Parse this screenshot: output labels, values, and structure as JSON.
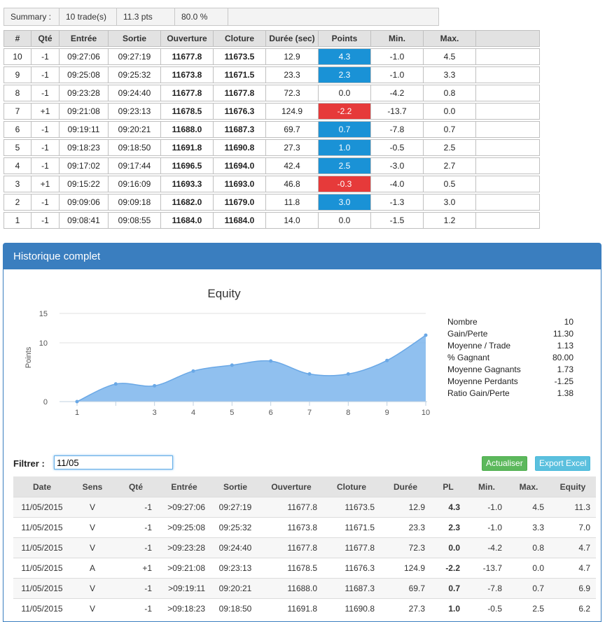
{
  "summary": {
    "label": "Summary :",
    "trades": "10 trade(s)",
    "points": "11.3 pts",
    "win_pct": "80.0 %"
  },
  "trades_table": {
    "headers": [
      "#",
      "Qté",
      "Entrée",
      "Sortie",
      "Ouverture",
      "Cloture",
      "Durée (sec)",
      "Points",
      "Min.",
      "Max.",
      ""
    ],
    "rows": [
      {
        "n": "10",
        "qte": "-1",
        "entree": "09:27:06",
        "sortie": "09:27:19",
        "ouv": "11677.8",
        "clot": "11673.5",
        "duree": "12.9",
        "points": "4.3",
        "min": "-1.0",
        "max": "4.5"
      },
      {
        "n": "9",
        "qte": "-1",
        "entree": "09:25:08",
        "sortie": "09:25:32",
        "ouv": "11673.8",
        "clot": "11671.5",
        "duree": "23.3",
        "points": "2.3",
        "min": "-1.0",
        "max": "3.3"
      },
      {
        "n": "8",
        "qte": "-1",
        "entree": "09:23:28",
        "sortie": "09:24:40",
        "ouv": "11677.8",
        "clot": "11677.8",
        "duree": "72.3",
        "points": "0.0",
        "min": "-4.2",
        "max": "0.8"
      },
      {
        "n": "7",
        "qte": "+1",
        "entree": "09:21:08",
        "sortie": "09:23:13",
        "ouv": "11678.5",
        "clot": "11676.3",
        "duree": "124.9",
        "points": "-2.2",
        "min": "-13.7",
        "max": "0.0"
      },
      {
        "n": "6",
        "qte": "-1",
        "entree": "09:19:11",
        "sortie": "09:20:21",
        "ouv": "11688.0",
        "clot": "11687.3",
        "duree": "69.7",
        "points": "0.7",
        "min": "-7.8",
        "max": "0.7"
      },
      {
        "n": "5",
        "qte": "-1",
        "entree": "09:18:23",
        "sortie": "09:18:50",
        "ouv": "11691.8",
        "clot": "11690.8",
        "duree": "27.3",
        "points": "1.0",
        "min": "-0.5",
        "max": "2.5"
      },
      {
        "n": "4",
        "qte": "-1",
        "entree": "09:17:02",
        "sortie": "09:17:44",
        "ouv": "11696.5",
        "clot": "11694.0",
        "duree": "42.4",
        "points": "2.5",
        "min": "-3.0",
        "max": "2.7"
      },
      {
        "n": "3",
        "qte": "+1",
        "entree": "09:15:22",
        "sortie": "09:16:09",
        "ouv": "11693.3",
        "clot": "11693.0",
        "duree": "46.8",
        "points": "-0.3",
        "min": "-4.0",
        "max": "0.5"
      },
      {
        "n": "2",
        "qte": "-1",
        "entree": "09:09:06",
        "sortie": "09:09:18",
        "ouv": "11682.0",
        "clot": "11679.0",
        "duree": "11.8",
        "points": "3.0",
        "min": "-1.3",
        "max": "3.0"
      },
      {
        "n": "1",
        "qte": "-1",
        "entree": "09:08:41",
        "sortie": "09:08:55",
        "ouv": "11684.0",
        "clot": "11684.0",
        "duree": "14.0",
        "points": "0.0",
        "min": "-1.5",
        "max": "1.2"
      }
    ]
  },
  "panel": {
    "title": "Historique complet"
  },
  "chart_data": {
    "type": "area",
    "title": "Equity",
    "ylabel": "Points",
    "xlabel": "",
    "x": [
      1,
      2,
      3,
      4,
      5,
      6,
      7,
      8,
      9,
      10
    ],
    "x_tick_labels": [
      "1",
      "",
      "3",
      "4",
      "5",
      "6",
      "7",
      "8",
      "9",
      "10"
    ],
    "values": [
      0.0,
      3.0,
      2.7,
      5.2,
      6.2,
      6.9,
      4.7,
      4.7,
      7.0,
      11.3
    ],
    "ylim": [
      0,
      15
    ],
    "y_ticks": [
      0,
      10,
      15
    ],
    "grid": true,
    "legend": "none"
  },
  "stats": [
    {
      "label": "Nombre",
      "value": "10"
    },
    {
      "label": "Gain/Perte",
      "value": "11.30"
    },
    {
      "label": "Moyenne / Trade",
      "value": "1.13"
    },
    {
      "label": "% Gagnant",
      "value": "80.00"
    },
    {
      "label": "Moyenne Gagnants",
      "value": "1.73"
    },
    {
      "label": "Moyenne Perdants",
      "value": "-1.25"
    },
    {
      "label": "Ratio Gain/Perte",
      "value": "1.38"
    }
  ],
  "filter": {
    "label": "Filtrer :",
    "value": "11/05"
  },
  "buttons": {
    "refresh": "Actualiser",
    "export": "Export Excel"
  },
  "history": {
    "headers": [
      "Date",
      "Sens",
      "Qté",
      "Entrée",
      "Sortie",
      "Ouverture",
      "Cloture",
      "Durée",
      "PL",
      "Min.",
      "Max.",
      "Equity"
    ],
    "rows": [
      {
        "date": "11/05/2015",
        "sens": "V",
        "qte": "-1",
        "entree": ">09:27:06",
        "sortie": "09:27:19",
        "ouv": "11677.8",
        "clot": "11673.5",
        "duree": "12.9",
        "pl": "4.3",
        "min": "-1.0",
        "max": "4.5",
        "equity": "11.3"
      },
      {
        "date": "11/05/2015",
        "sens": "V",
        "qte": "-1",
        "entree": ">09:25:08",
        "sortie": "09:25:32",
        "ouv": "11673.8",
        "clot": "11671.5",
        "duree": "23.3",
        "pl": "2.3",
        "min": "-1.0",
        "max": "3.3",
        "equity": "7.0"
      },
      {
        "date": "11/05/2015",
        "sens": "V",
        "qte": "-1",
        "entree": ">09:23:28",
        "sortie": "09:24:40",
        "ouv": "11677.8",
        "clot": "11677.8",
        "duree": "72.3",
        "pl": "0.0",
        "min": "-4.2",
        "max": "0.8",
        "equity": "4.7"
      },
      {
        "date": "11/05/2015",
        "sens": "A",
        "qte": "+1",
        "entree": ">09:21:08",
        "sortie": "09:23:13",
        "ouv": "11678.5",
        "clot": "11676.3",
        "duree": "124.9",
        "pl": "-2.2",
        "min": "-13.7",
        "max": "0.0",
        "equity": "4.7"
      },
      {
        "date": "11/05/2015",
        "sens": "V",
        "qte": "-1",
        "entree": ">09:19:11",
        "sortie": "09:20:21",
        "ouv": "11688.0",
        "clot": "11687.3",
        "duree": "69.7",
        "pl": "0.7",
        "min": "-7.8",
        "max": "0.7",
        "equity": "6.9"
      },
      {
        "date": "11/05/2015",
        "sens": "V",
        "qte": "-1",
        "entree": ">09:18:23",
        "sortie": "09:18:50",
        "ouv": "11691.8",
        "clot": "11690.8",
        "duree": "27.3",
        "pl": "1.0",
        "min": "-0.5",
        "max": "2.5",
        "equity": "6.2"
      }
    ]
  },
  "colors": {
    "positive": "#1a92d6",
    "negative": "#e63a3a",
    "area": "#7cb5ec",
    "panel_header": "#3a7ebf"
  }
}
